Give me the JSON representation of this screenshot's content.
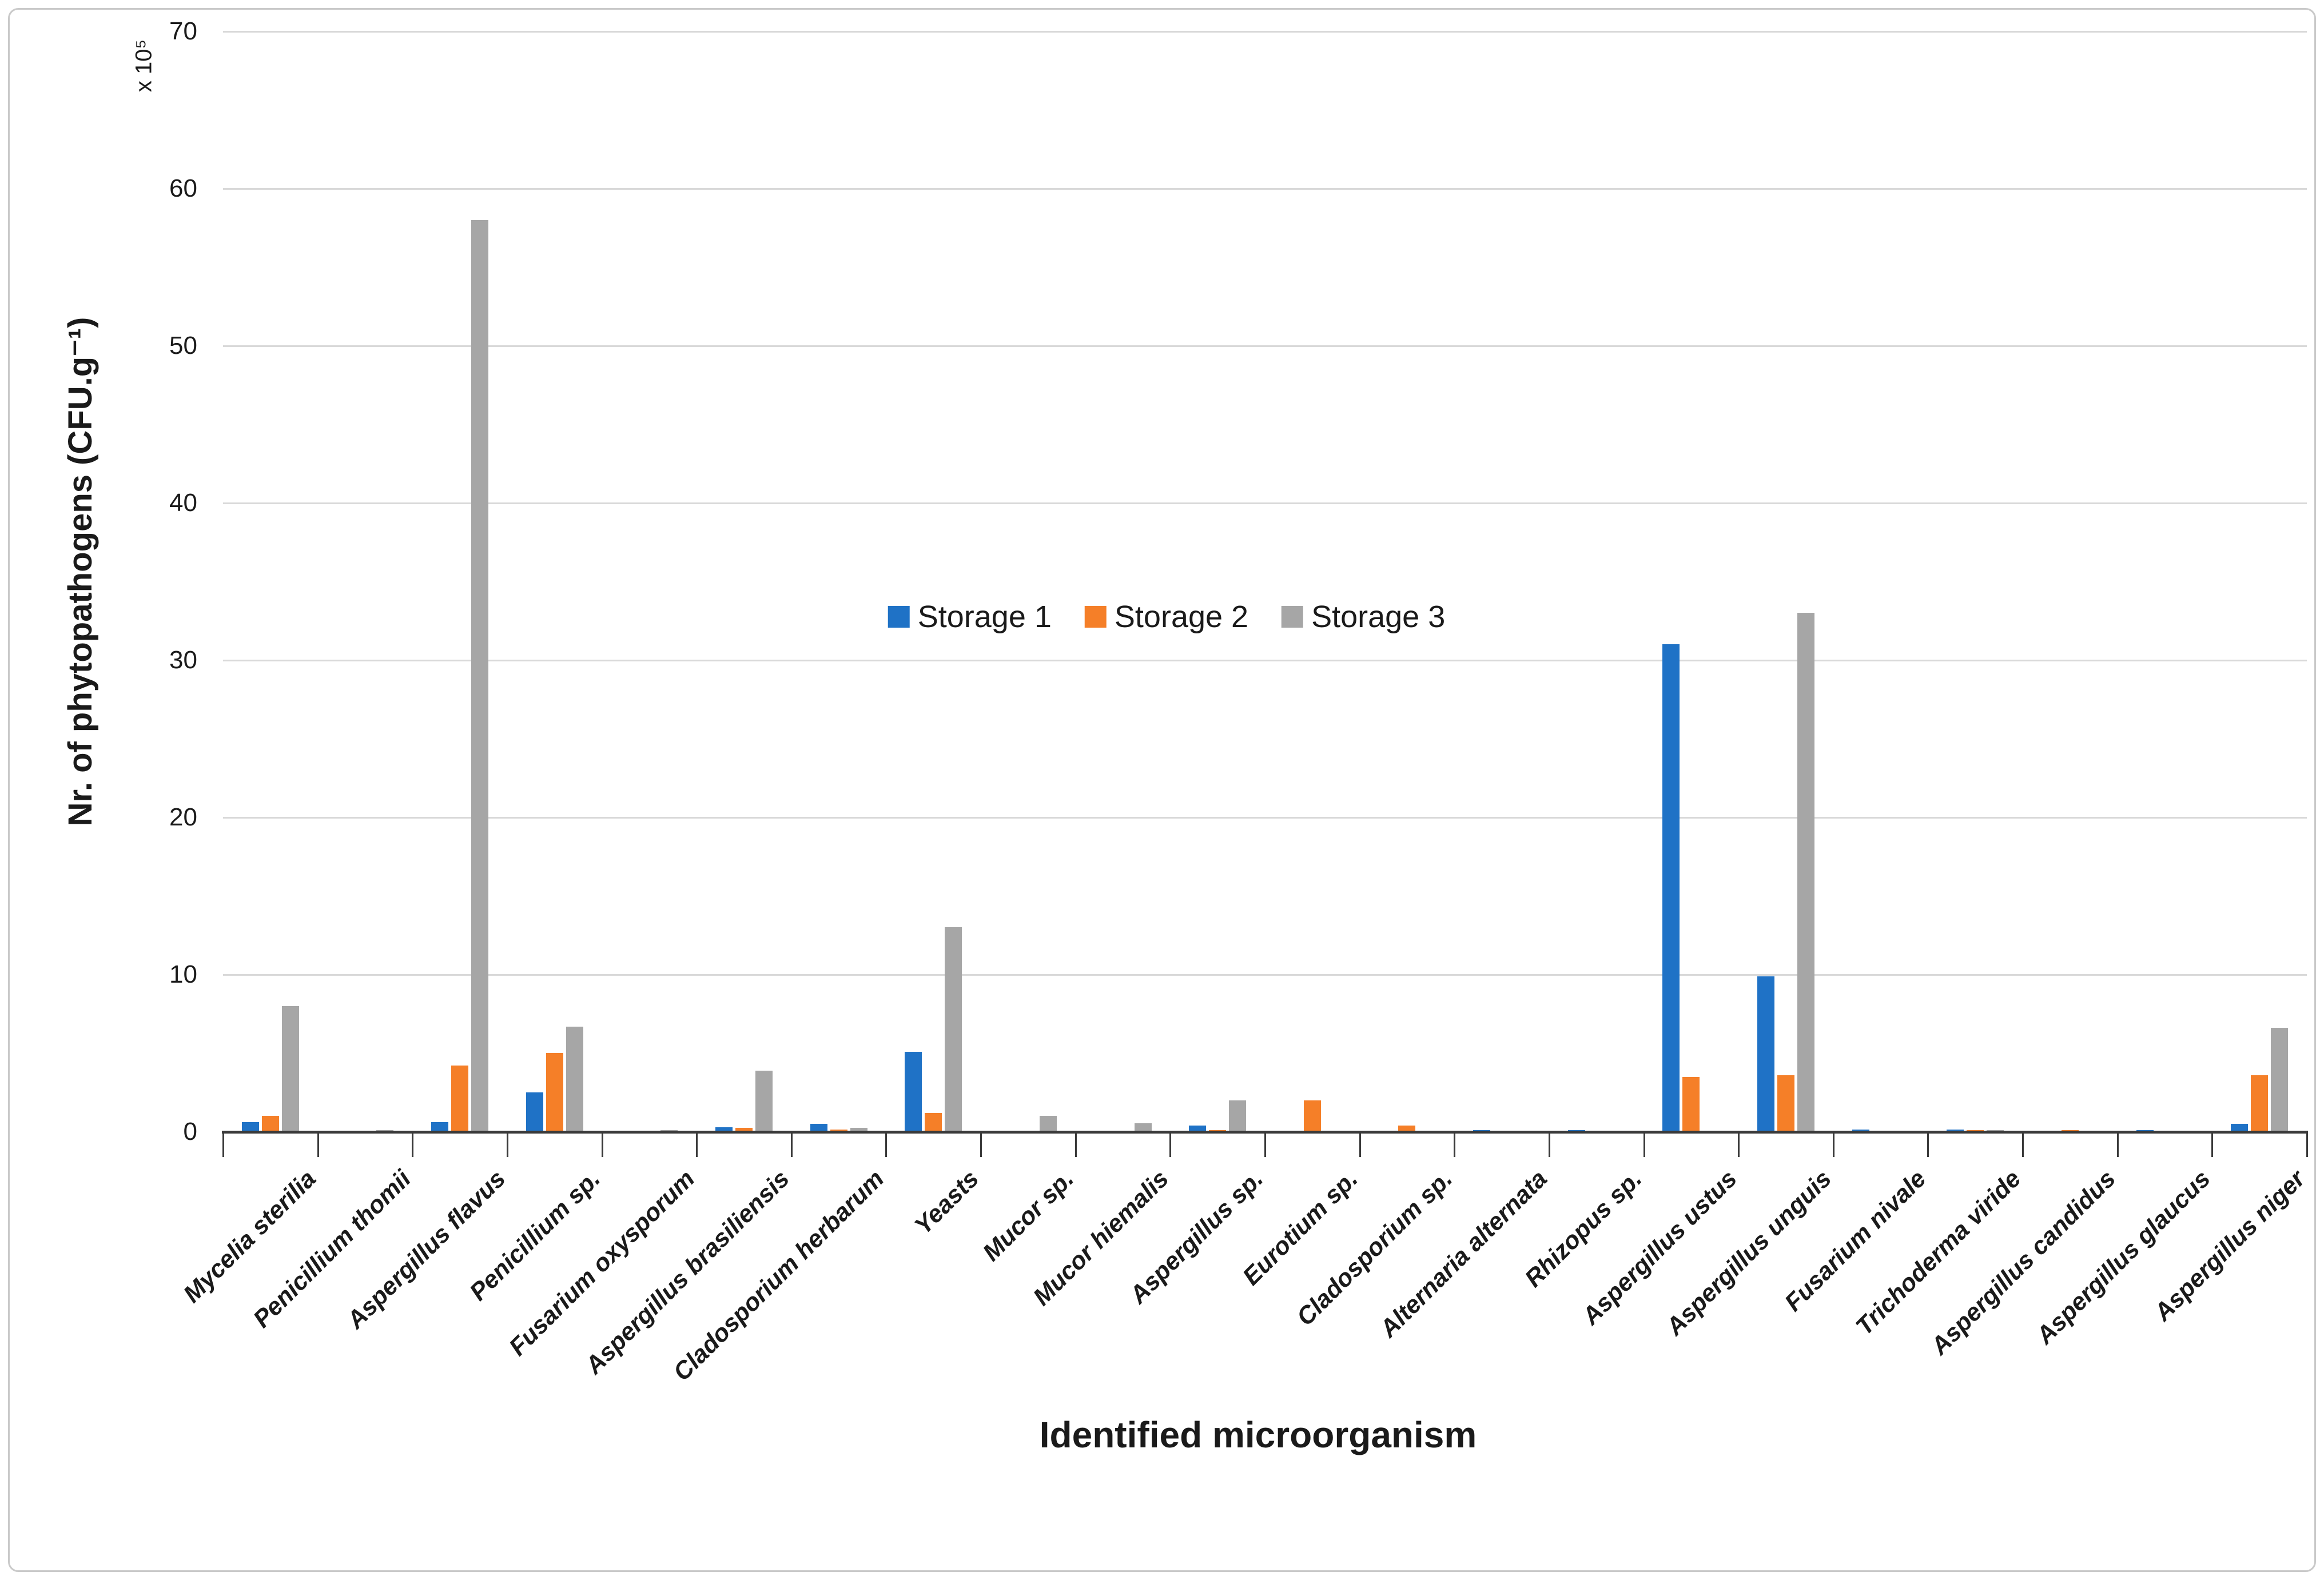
{
  "chart_data": {
    "type": "bar",
    "title": "",
    "xlabel": "Identified microorganism",
    "ylabel": "Nr. of phytopathogens (CFU.g⁻¹)",
    "y_multiplier": "x 10⁵",
    "ylim": [
      0,
      70
    ],
    "yticks": [
      0,
      10,
      20,
      30,
      40,
      50,
      60,
      70
    ],
    "grid": true,
    "legend_position": "inside-top-center",
    "categories": [
      "Mycelia sterilia",
      "Penicillium thomii",
      "Aspergillus flavus",
      "Penicillium sp.",
      "Fusarium oxysporum",
      "Aspergillus brasiliensis",
      "Cladosporium herbarum",
      "Yeasts",
      "Mucor sp.",
      "Mucor hiemalis",
      "Aspergillus sp.",
      "Eurotium sp.",
      "Cladosporium sp.",
      "Alternaria alternata",
      "Rhizopus sp.",
      "Aspergillus ustus",
      "Aspergillus unguis",
      "Fusarium nivale",
      "Trichoderma viride",
      "Aspergillus candidus",
      "Aspergillus glaucus",
      "Aspergillus niger"
    ],
    "series": [
      {
        "name": "Storage 1",
        "color": "#1F72C6",
        "values": [
          0.6,
          0,
          0.6,
          2.5,
          0,
          0.3,
          0.5,
          5.1,
          0,
          0,
          0.4,
          0,
          0,
          0.1,
          0.1,
          31,
          9.9,
          0.15,
          0.15,
          0,
          0.1,
          0.5
        ]
      },
      {
        "name": "Storage 2",
        "color": "#F57F28",
        "values": [
          1.0,
          0,
          4.2,
          5.0,
          0,
          0.25,
          0.15,
          1.2,
          0,
          0,
          0.1,
          2.0,
          0.4,
          0,
          0,
          3.5,
          3.6,
          0,
          0.1,
          0.1,
          0,
          3.6
        ]
      },
      {
        "name": "Storage 3",
        "color": "#A6A6A6",
        "values": [
          8.0,
          0.1,
          58,
          6.7,
          0.1,
          3.9,
          0.25,
          13,
          1.0,
          0.55,
          2.0,
          0,
          0,
          0,
          0,
          0,
          33,
          0,
          0.1,
          0,
          0,
          6.6
        ]
      }
    ],
    "colors": {
      "axis": "#3A3A3A",
      "gridline": "#D9D9D9",
      "text": "#1A1A1A",
      "frame_border": "#C9C9C9",
      "background": "#FFFFFF"
    }
  }
}
